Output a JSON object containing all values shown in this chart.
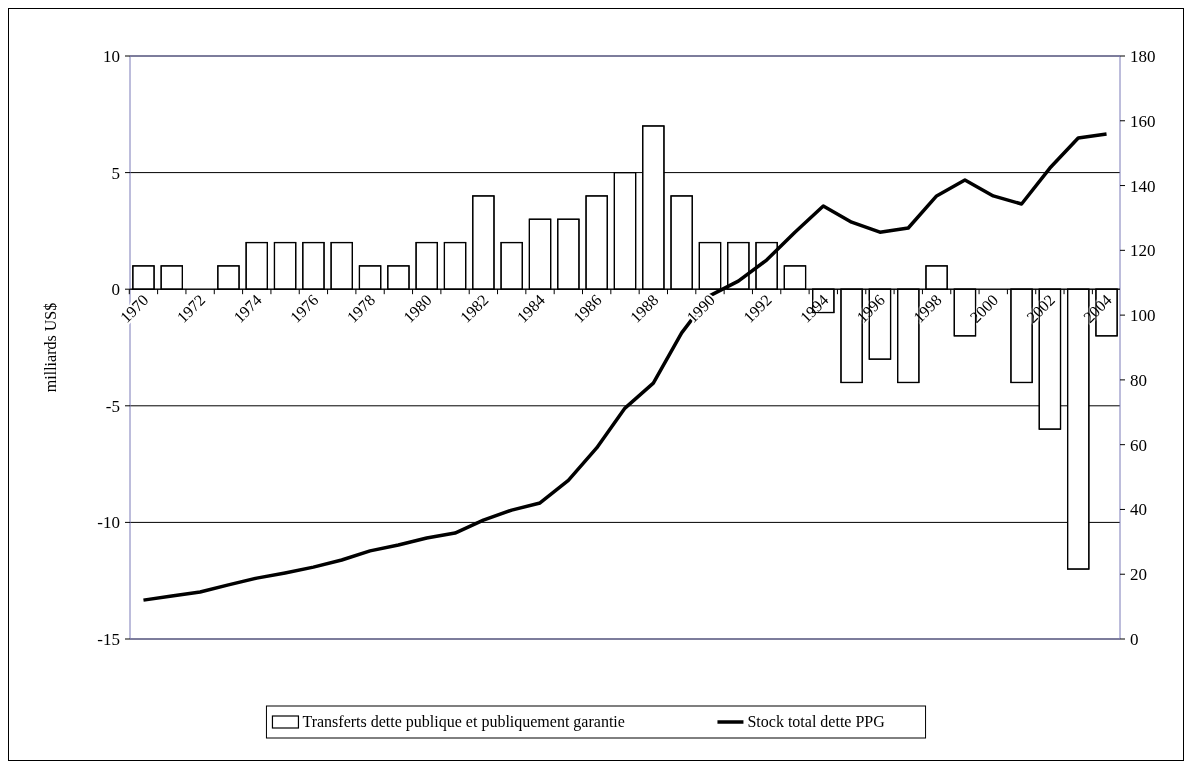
{
  "chart_data": {
    "type": "bar",
    "ylabel": "milliards US$",
    "categories": [
      "1970",
      null,
      "1972",
      null,
      "1974",
      null,
      "1976",
      null,
      "1978",
      null,
      "1980",
      null,
      "1982",
      null,
      "1984",
      null,
      "1986",
      null,
      "1988",
      null,
      "1990",
      null,
      "1992",
      null,
      "1994",
      null,
      "1996",
      null,
      "1998",
      null,
      "2000",
      null,
      "2002",
      null,
      "2004"
    ],
    "series": [
      {
        "name": "Transferts dette publique et publiquement garantie",
        "color": "#ffffff",
        "values": [
          1,
          1,
          0,
          1,
          2,
          2,
          2,
          2,
          1,
          1,
          2,
          2,
          4,
          2,
          3,
          3,
          4,
          5,
          7,
          4,
          2,
          2,
          2,
          1,
          -1,
          -4,
          -3,
          -4,
          1,
          -2,
          0,
          -4,
          -6,
          -12,
          -2
        ]
      },
      {
        "name": "Stock total dette PPG",
        "type": "line",
        "axis": "y2",
        "color": "#000000",
        "values": [
          12,
          13.3,
          14.5,
          16.7,
          18.8,
          20.4,
          22.2,
          24.4,
          27.2,
          29,
          31.2,
          32.7,
          36.7,
          39.8,
          42,
          49,
          59,
          71.3,
          79,
          94.5,
          106,
          110.5,
          117,
          125.6,
          133.7,
          128.7,
          125.6,
          126.9,
          136.8,
          141.7,
          136.8,
          134.3,
          145.4,
          154.7,
          155.9
        ]
      }
    ],
    "ylim": [
      -15,
      10
    ],
    "yticks": [
      -15,
      -10,
      -5,
      0,
      5,
      10
    ],
    "y2lim": [
      0,
      180
    ],
    "y2ticks": [
      0,
      20,
      40,
      60,
      80,
      100,
      120,
      140,
      160,
      180
    ],
    "grid": "y",
    "legend": "bottom",
    "marker": "none",
    "line_style": "solid"
  }
}
